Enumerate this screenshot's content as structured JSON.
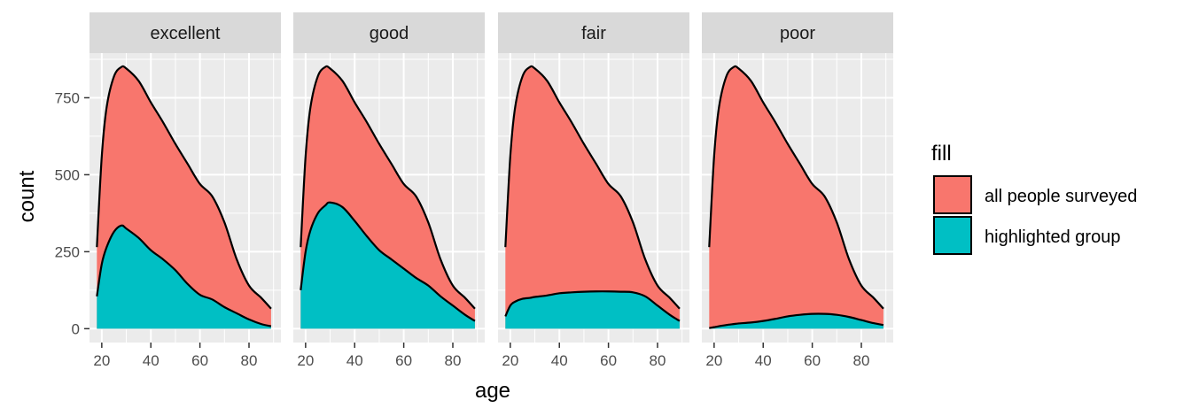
{
  "chart_data": {
    "type": "area",
    "facet_labels": [
      "excellent",
      "good",
      "fair",
      "poor"
    ],
    "xlabel": "age",
    "ylabel": "count",
    "xlim": [
      15,
      93
    ],
    "ylim": [
      -45,
      895
    ],
    "x_ticks": [
      20,
      40,
      60,
      80
    ],
    "y_ticks": [
      0,
      250,
      500,
      750
    ],
    "grid": true,
    "legend": {
      "title": "fill",
      "position": "right",
      "entries": [
        {
          "name": "all people surveyed",
          "color": "#F8766D"
        },
        {
          "name": "highlighted group",
          "color": "#00BFC4"
        }
      ]
    },
    "x": [
      18,
      20,
      22,
      25,
      28,
      30,
      35,
      40,
      45,
      50,
      55,
      60,
      65,
      70,
      75,
      80,
      85,
      89
    ],
    "background": {
      "name": "all people surveyed",
      "values": [
        265,
        560,
        720,
        820,
        850,
        845,
        805,
        735,
        670,
        600,
        535,
        470,
        430,
        345,
        225,
        140,
        100,
        65
      ]
    },
    "panels": [
      {
        "label": "excellent",
        "highlight_values": [
          105,
          210,
          265,
          315,
          335,
          325,
          295,
          255,
          225,
          190,
          145,
          110,
          95,
          70,
          50,
          30,
          15,
          8
        ]
      },
      {
        "label": "good",
        "highlight_values": [
          125,
          250,
          320,
          375,
          400,
          410,
          395,
          350,
          300,
          255,
          225,
          195,
          165,
          140,
          105,
          75,
          45,
          25
        ]
      },
      {
        "label": "fair",
        "highlight_values": [
          40,
          75,
          88,
          97,
          100,
          103,
          108,
          115,
          118,
          120,
          121,
          121,
          120,
          118,
          105,
          75,
          45,
          25
        ]
      },
      {
        "label": "poor",
        "highlight_values": [
          2,
          5,
          8,
          12,
          15,
          17,
          20,
          25,
          32,
          40,
          45,
          48,
          48,
          45,
          38,
          28,
          18,
          12
        ]
      }
    ]
  },
  "colors": {
    "panel_bg": "#EBEBEB",
    "strip_bg": "#D9D9D9",
    "grid": "#FFFFFF",
    "outline": "#000000"
  }
}
